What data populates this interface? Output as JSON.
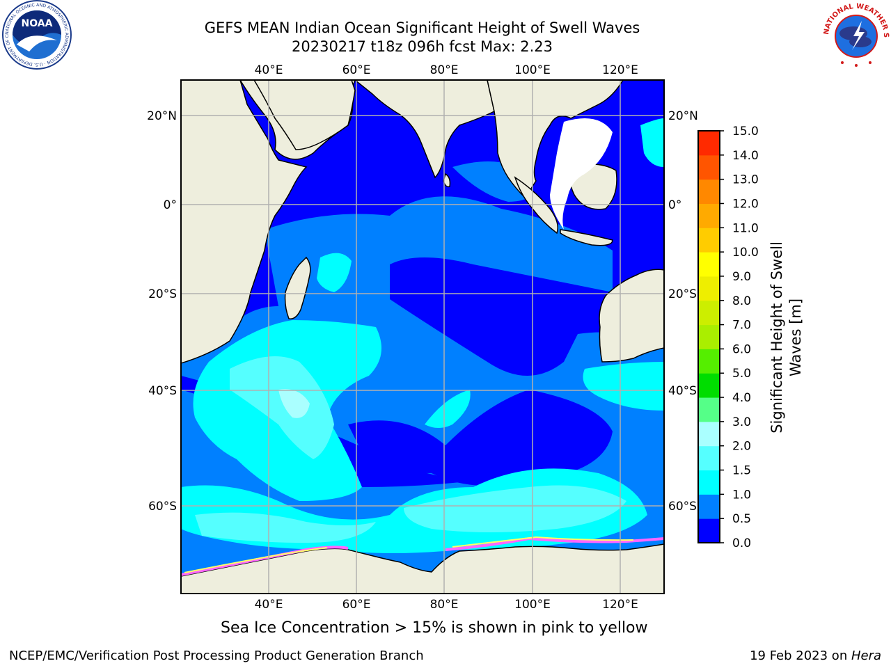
{
  "title_line1": "GEFS MEAN Indian Ocean Significant Height of Swell Waves",
  "title_line2": "20230217 t18z 096h fcst   Max: 2.23",
  "noaa_logo": {
    "center_text": "NOAA",
    "ring_text": "NATIONAL OCEANIC AND ATMOSPHERIC ADMINISTRATION · U.S. DEPARTMENT OF COMMERCE"
  },
  "nws_logo": {
    "ring_text": "NATIONAL WEATHER SERVICE"
  },
  "map": {
    "lon_labels": [
      "40°E",
      "60°E",
      "80°E",
      "100°E",
      "120°E"
    ],
    "lat_labels": [
      "20°N",
      "0°",
      "20°S",
      "40°S",
      "60°S"
    ],
    "colors": {
      "land": "#eeeedd",
      "ocean_deep": "#0000ff",
      "ocean_mid": "#0080ff",
      "ocean_light": "#00ffff",
      "grid": "#b0b0b0"
    }
  },
  "colorbar": {
    "label_line1": "Significant Height of Swell",
    "label_line2": "Waves [m]",
    "ticks": [
      "0.0",
      "0.5",
      "1.0",
      "1.5",
      "2.0",
      "3.0",
      "4.0",
      "5.0",
      "6.0",
      "7.0",
      "8.0",
      "9.0",
      "10.0",
      "11.0",
      "12.0",
      "13.0",
      "14.0",
      "15.0"
    ],
    "colors": [
      "#0000ff",
      "#0080ff",
      "#00ffff",
      "#55ffff",
      "#aaffff",
      "#55ff88",
      "#00dd00",
      "#55ee00",
      "#aaee00",
      "#ccee00",
      "#eeee00",
      "#ffff00",
      "#ffcc00",
      "#ffaa00",
      "#ff8800",
      "#ff5500",
      "#ff2a00",
      "#ff0000"
    ]
  },
  "caption": "Sea Ice Concentration > 15% is shown in pink to yellow",
  "footer_left": "NCEP/EMC/Verification Post Processing Product Generation Branch",
  "footer_right_date": "19 Feb 2023 on ",
  "footer_right_host": "Hera"
}
